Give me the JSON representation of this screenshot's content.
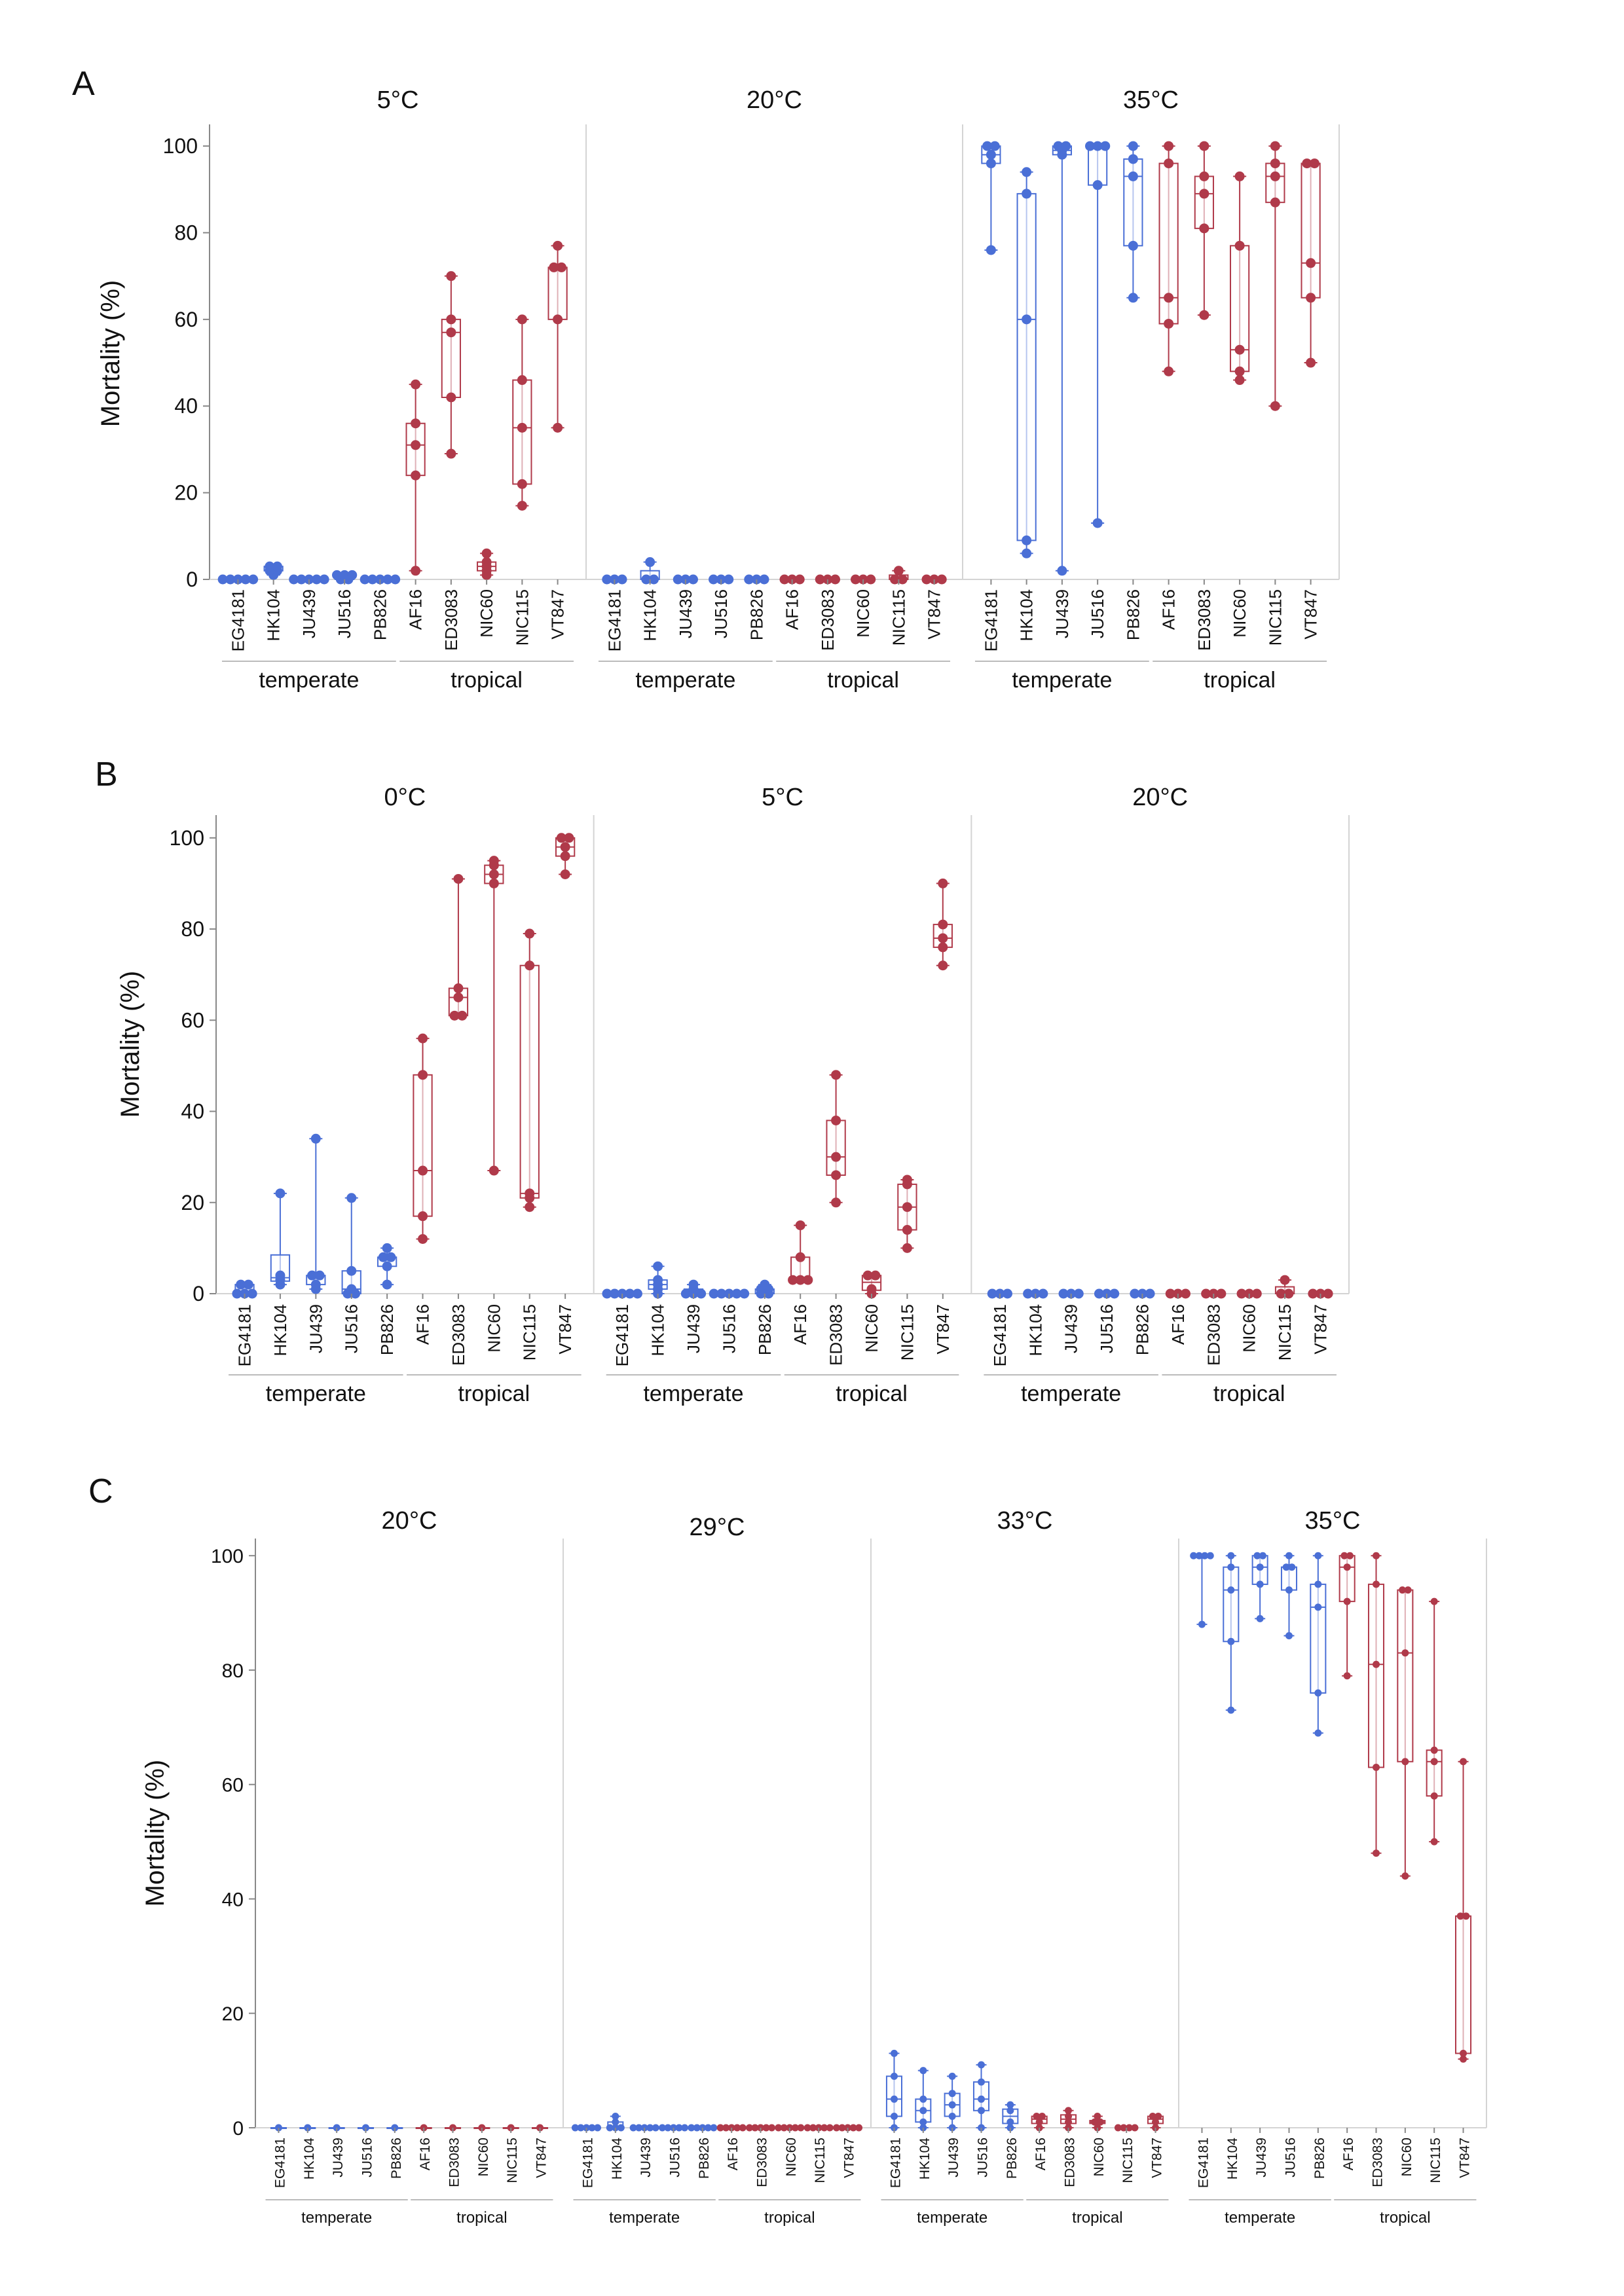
{
  "colors": {
    "temperate": "#4a6fd6",
    "tropical": "#b03a4a",
    "axis": "#888888",
    "divider": "#d4d4d4"
  },
  "chart_data": [
    {
      "panel": "A",
      "type": "box",
      "ylabel": "Mortality (%)",
      "ylim": [
        0,
        105
      ],
      "yticks": [
        0,
        20,
        40,
        60,
        80,
        100
      ],
      "groups": [
        "temperate",
        "tropical"
      ],
      "categories": [
        "EG4181",
        "HK104",
        "JU439",
        "JU516",
        "PB826",
        "AF16",
        "ED3083",
        "NIC60",
        "NIC115",
        "VT847"
      ],
      "category_groups": [
        "temperate",
        "temperate",
        "temperate",
        "temperate",
        "temperate",
        "tropical",
        "tropical",
        "tropical",
        "tropical",
        "tropical"
      ],
      "facets": [
        {
          "title": "5°C",
          "values": [
            [
              0,
              0,
              0,
              0,
              0
            ],
            [
              1,
              2,
              2,
              3,
              3
            ],
            [
              0,
              0,
              0,
              0,
              0
            ],
            [
              0,
              0,
              1,
              1,
              1
            ],
            [
              0,
              0,
              0,
              0,
              0
            ],
            [
              2,
              24,
              31,
              36,
              45
            ],
            [
              29,
              42,
              57,
              60,
              70
            ],
            [
              1,
              2,
              3,
              4,
              6
            ],
            [
              17,
              22,
              35,
              46,
              60
            ],
            [
              35,
              60,
              72,
              72,
              77
            ]
          ]
        },
        {
          "title": "20°C",
          "values": [
            [
              0,
              0,
              0
            ],
            [
              0,
              0,
              4
            ],
            [
              0,
              0,
              0
            ],
            [
              0,
              0,
              0
            ],
            [
              0,
              0,
              0
            ],
            [
              0,
              0,
              0
            ],
            [
              0,
              0,
              0
            ],
            [
              0,
              0,
              0
            ],
            [
              0,
              0,
              2
            ],
            [
              0,
              0,
              0
            ]
          ]
        },
        {
          "title": "35°C",
          "values": [
            [
              76,
              96,
              98,
              100,
              100
            ],
            [
              6,
              9,
              60,
              89,
              94
            ],
            [
              2,
              98,
              99,
              100,
              100
            ],
            [
              13,
              91,
              100,
              100,
              100
            ],
            [
              65,
              77,
              93,
              97,
              100
            ],
            [
              48,
              59,
              65,
              96,
              100
            ],
            [
              61,
              81,
              89,
              93,
              100
            ],
            [
              46,
              48,
              53,
              77,
              93
            ],
            [
              40,
              87,
              93,
              96,
              100
            ],
            [
              50,
              65,
              73,
              96,
              96
            ]
          ]
        }
      ]
    },
    {
      "panel": "B",
      "type": "box",
      "ylabel": "Mortality (%)",
      "ylim": [
        0,
        105
      ],
      "yticks": [
        0,
        20,
        40,
        60,
        80,
        100
      ],
      "groups": [
        "temperate",
        "tropical"
      ],
      "categories": [
        "EG4181",
        "HK104",
        "JU439",
        "JU516",
        "PB826",
        "AF16",
        "ED3083",
        "NIC60",
        "NIC115",
        "VT847"
      ],
      "category_groups": [
        "temperate",
        "temperate",
        "temperate",
        "temperate",
        "temperate",
        "tropical",
        "tropical",
        "tropical",
        "tropical",
        "tropical"
      ],
      "facets": [
        {
          "title": "0°C",
          "values": [
            [
              0,
              0,
              0,
              2,
              2
            ],
            [
              2,
              3,
              4,
              22
            ],
            [
              1,
              2,
              4,
              4,
              34
            ],
            [
              0,
              0,
              1,
              5,
              21
            ],
            [
              2,
              6,
              8,
              8,
              10
            ],
            [
              12,
              17,
              27,
              48,
              56
            ],
            [
              61,
              61,
              65,
              67,
              91
            ],
            [
              27,
              90,
              92,
              94,
              95
            ],
            [
              19,
              21,
              22,
              72,
              79
            ],
            [
              92,
              96,
              98,
              100,
              100
            ]
          ]
        },
        {
          "title": "5°C",
          "values": [
            [
              0,
              0,
              0,
              0,
              0
            ],
            [
              0,
              1,
              2,
              3,
              6
            ],
            [
              0,
              0,
              0,
              1,
              2
            ],
            [
              0,
              0,
              0,
              0,
              0
            ],
            [
              0,
              0,
              1,
              1,
              2
            ],
            [
              3,
              3,
              3,
              8,
              15
            ],
            [
              20,
              26,
              30,
              38,
              48
            ],
            [
              0,
              1,
              4,
              4
            ],
            [
              10,
              14,
              19,
              24,
              25
            ],
            [
              72,
              76,
              78,
              81,
              90
            ]
          ]
        },
        {
          "title": "20°C",
          "values": [
            [
              0,
              0,
              0
            ],
            [
              0,
              0,
              0
            ],
            [
              0,
              0,
              0
            ],
            [
              0,
              0,
              0
            ],
            [
              0,
              0,
              0
            ],
            [
              0,
              0,
              0
            ],
            [
              0,
              0,
              0
            ],
            [
              0,
              0,
              0
            ],
            [
              0,
              0,
              3
            ],
            [
              0,
              0,
              0
            ]
          ]
        }
      ]
    },
    {
      "panel": "C",
      "type": "box",
      "ylabel": "Mortality (%)",
      "ylim": [
        0,
        103
      ],
      "yticks": [
        0,
        20,
        40,
        60,
        80,
        100
      ],
      "groups": [
        "temperate",
        "tropical"
      ],
      "categories": [
        "EG4181",
        "HK104",
        "JU439",
        "JU516",
        "PB826",
        "AF16",
        "ED3083",
        "NIC60",
        "NIC115",
        "VT847"
      ],
      "category_groups": [
        "temperate",
        "temperate",
        "temperate",
        "temperate",
        "temperate",
        "tropical",
        "tropical",
        "tropical",
        "tropical",
        "tropical"
      ],
      "facets": [
        {
          "title": "20°C",
          "values": [
            [
              0
            ],
            [
              0
            ],
            [
              0
            ],
            [
              0
            ],
            [
              0
            ],
            [
              0
            ],
            [
              0
            ],
            [
              0
            ],
            [
              0
            ],
            [
              0
            ]
          ]
        },
        {
          "title": "29°C",
          "values": [
            [
              0,
              0,
              0,
              0,
              0
            ],
            [
              0,
              0,
              0,
              1,
              2
            ],
            [
              0,
              0,
              0,
              0,
              0
            ],
            [
              0,
              0,
              0,
              0,
              0
            ],
            [
              0,
              0,
              0,
              0,
              0
            ],
            [
              0,
              0,
              0,
              0,
              0
            ],
            [
              0,
              0,
              0,
              0,
              0
            ],
            [
              0,
              0,
              0,
              0,
              0
            ],
            [
              0,
              0,
              0,
              0,
              0
            ],
            [
              0,
              0,
              0,
              0,
              0
            ]
          ]
        },
        {
          "title": "33°C",
          "values": [
            [
              0,
              2,
              5,
              9,
              13
            ],
            [
              0,
              1,
              3,
              5,
              10
            ],
            [
              0,
              2,
              4,
              6,
              9
            ],
            [
              0,
              3,
              5,
              8,
              11
            ],
            [
              0,
              1,
              3,
              4
            ],
            [
              0,
              1,
              2,
              2
            ],
            [
              0,
              1,
              2,
              3
            ],
            [
              0,
              1,
              1,
              2
            ],
            [
              0,
              0,
              0,
              0
            ],
            [
              0,
              1,
              2,
              2
            ]
          ]
        },
        {
          "title": "35°C",
          "values": [
            [
              88,
              100,
              100,
              100,
              100
            ],
            [
              73,
              85,
              94,
              98,
              100
            ],
            [
              89,
              95,
              98,
              100,
              100
            ],
            [
              86,
              94,
              98,
              98,
              100
            ],
            [
              69,
              76,
              91,
              95,
              100
            ],
            [
              79,
              92,
              98,
              100,
              100
            ],
            [
              48,
              63,
              81,
              95,
              100
            ],
            [
              44,
              64,
              83,
              94,
              94
            ],
            [
              50,
              58,
              64,
              66,
              92
            ],
            [
              12,
              13,
              37,
              37,
              64
            ]
          ]
        }
      ]
    }
  ]
}
